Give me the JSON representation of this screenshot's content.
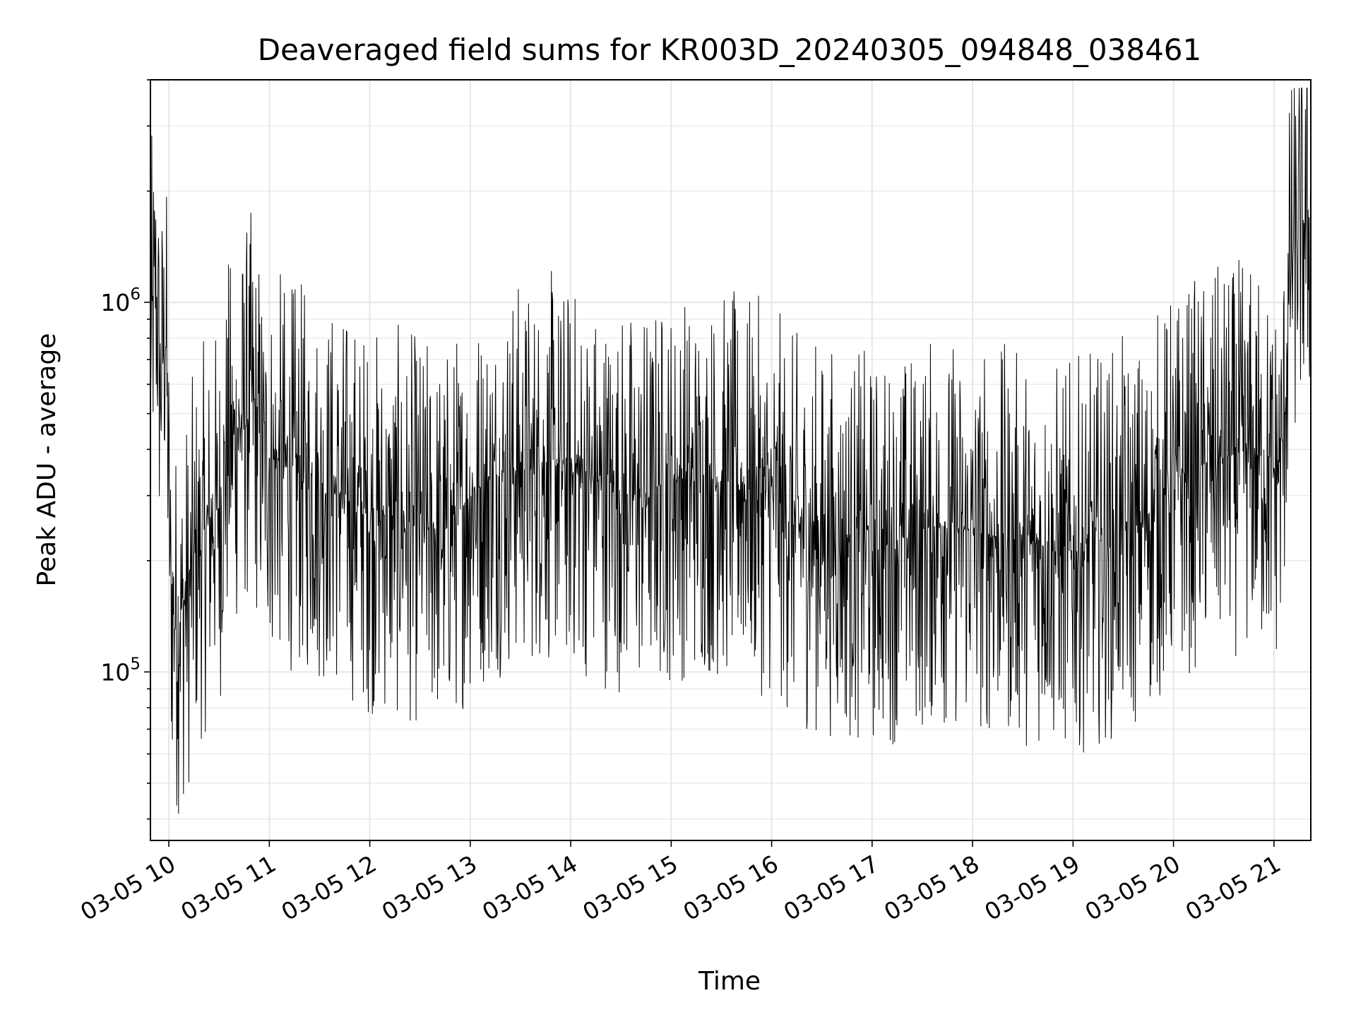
{
  "chart_data": {
    "type": "line",
    "title": "Deaveraged field sums for KR003D_20240305_094848_038461",
    "xlabel": "Time",
    "ylabel": "Peak ADU - average",
    "yscale": "log",
    "ylim": [
      35000,
      4000000
    ],
    "xlim": [
      "2024-03-05 09:49",
      "2024-03-05 21:22"
    ],
    "grid": true,
    "x_ticks": [
      {
        "value": "2024-03-05 10:00",
        "label": "03-05 10"
      },
      {
        "value": "2024-03-05 11:00",
        "label": "03-05 11"
      },
      {
        "value": "2024-03-05 12:00",
        "label": "03-05 12"
      },
      {
        "value": "2024-03-05 13:00",
        "label": "03-05 13"
      },
      {
        "value": "2024-03-05 14:00",
        "label": "03-05 14"
      },
      {
        "value": "2024-03-05 15:00",
        "label": "03-05 15"
      },
      {
        "value": "2024-03-05 16:00",
        "label": "03-05 16"
      },
      {
        "value": "2024-03-05 17:00",
        "label": "03-05 17"
      },
      {
        "value": "2024-03-05 18:00",
        "label": "03-05 18"
      },
      {
        "value": "2024-03-05 19:00",
        "label": "03-05 19"
      },
      {
        "value": "2024-03-05 20:00",
        "label": "03-05 20"
      },
      {
        "value": "2024-03-05 21:00",
        "label": "03-05 21"
      }
    ],
    "y_ticks": [
      {
        "value": 100000,
        "base": "10",
        "exp": "5"
      },
      {
        "value": 1000000,
        "base": "10",
        "exp": "6"
      }
    ],
    "series": [
      {
        "color": "#000000",
        "x": [
          "2024-03-05 09:49",
          "2024-03-05 09:52",
          "2024-03-05 09:55",
          "2024-03-05 09:58",
          "2024-03-05 10:01",
          "2024-03-05 10:04",
          "2024-03-05 10:08",
          "2024-03-05 10:12",
          "2024-03-05 10:16",
          "2024-03-05 10:20",
          "2024-03-05 10:25",
          "2024-03-05 10:30",
          "2024-03-05 10:35",
          "2024-03-05 10:40",
          "2024-03-05 10:45",
          "2024-03-05 10:50",
          "2024-03-05 10:55",
          "2024-03-05 11:00",
          "2024-03-05 11:10",
          "2024-03-05 11:20",
          "2024-03-05 11:30",
          "2024-03-05 11:40",
          "2024-03-05 11:50",
          "2024-03-05 12:00",
          "2024-03-05 12:15",
          "2024-03-05 12:30",
          "2024-03-05 12:45",
          "2024-03-05 13:00",
          "2024-03-05 13:15",
          "2024-03-05 13:30",
          "2024-03-05 13:45",
          "2024-03-05 14:00",
          "2024-03-05 14:20",
          "2024-03-05 14:40",
          "2024-03-05 15:00",
          "2024-03-05 15:20",
          "2024-03-05 15:40",
          "2024-03-05 16:00",
          "2024-03-05 16:15",
          "2024-03-05 16:30",
          "2024-03-05 16:45",
          "2024-03-05 17:00",
          "2024-03-05 17:20",
          "2024-03-05 17:40",
          "2024-03-05 18:00",
          "2024-03-05 18:20",
          "2024-03-05 18:40",
          "2024-03-05 19:00",
          "2024-03-05 19:20",
          "2024-03-05 19:40",
          "2024-03-05 20:00",
          "2024-03-05 20:15",
          "2024-03-05 20:30",
          "2024-03-05 20:45",
          "2024-03-05 21:00",
          "2024-03-05 21:05",
          "2024-03-05 21:10",
          "2024-03-05 21:15",
          "2024-03-05 21:22"
        ],
        "y": [
          750000,
          1200000,
          600000,
          900000,
          180000,
          140000,
          150000,
          170000,
          210000,
          230000,
          260000,
          280000,
          400000,
          450000,
          500000,
          550000,
          420000,
          380000,
          360000,
          340000,
          330000,
          310000,
          290000,
          270000,
          260000,
          250000,
          240000,
          300000,
          340000,
          360000,
          370000,
          350000,
          320000,
          300000,
          330000,
          340000,
          320000,
          300000,
          250000,
          240000,
          230000,
          220000,
          230000,
          250000,
          240000,
          230000,
          220000,
          210000,
          230000,
          250000,
          330000,
          360000,
          380000,
          400000,
          350000,
          400000,
          1300000,
          1600000,
          1700000
        ],
        "noise_band": {
          "low_factor": 0.28,
          "high_factor": 3.4,
          "samples": 2600
        }
      }
    ]
  }
}
